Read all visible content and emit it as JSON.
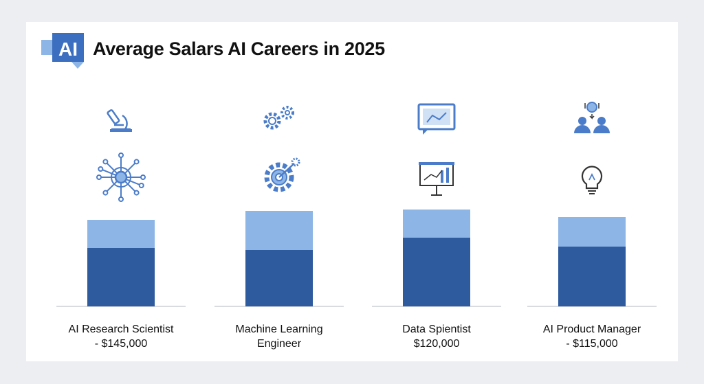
{
  "header": {
    "logo_text": "AI",
    "title": "Average Salars AI Careers in 2025"
  },
  "colors": {
    "bar_dark": "#2e5a9e",
    "bar_light": "#8db5e6",
    "icon_blue": "#4a7cc9",
    "baseline": "#d8dbe0"
  },
  "chart_data": {
    "type": "bar",
    "stacked": true,
    "title": "Average Salars AI Careers in 2025",
    "axes_shown": false,
    "grid": false,
    "categories": [
      {
        "line1": "AI Research Scientist",
        "line2": "- $145,000"
      },
      {
        "line1": "Machine Learning",
        "line2": "Engineer"
      },
      {
        "line1": "Data Spientist",
        "line2": "$120,000"
      },
      {
        "line1": "AI Product Manager",
        "line2": "- $115,000"
      }
    ],
    "series": [
      {
        "values": [
          85,
          82,
          100,
          87
        ]
      },
      {
        "values": [
          41,
          57,
          41,
          43
        ]
      }
    ],
    "icons": [
      [
        "microscope-icon",
        "neural-network-icon"
      ],
      [
        "gears-icon",
        "gear-target-icon"
      ],
      [
        "chart-chat-icon",
        "presentation-chart-icon"
      ],
      [
        "team-idea-icon",
        "lightbulb-icon"
      ]
    ]
  }
}
